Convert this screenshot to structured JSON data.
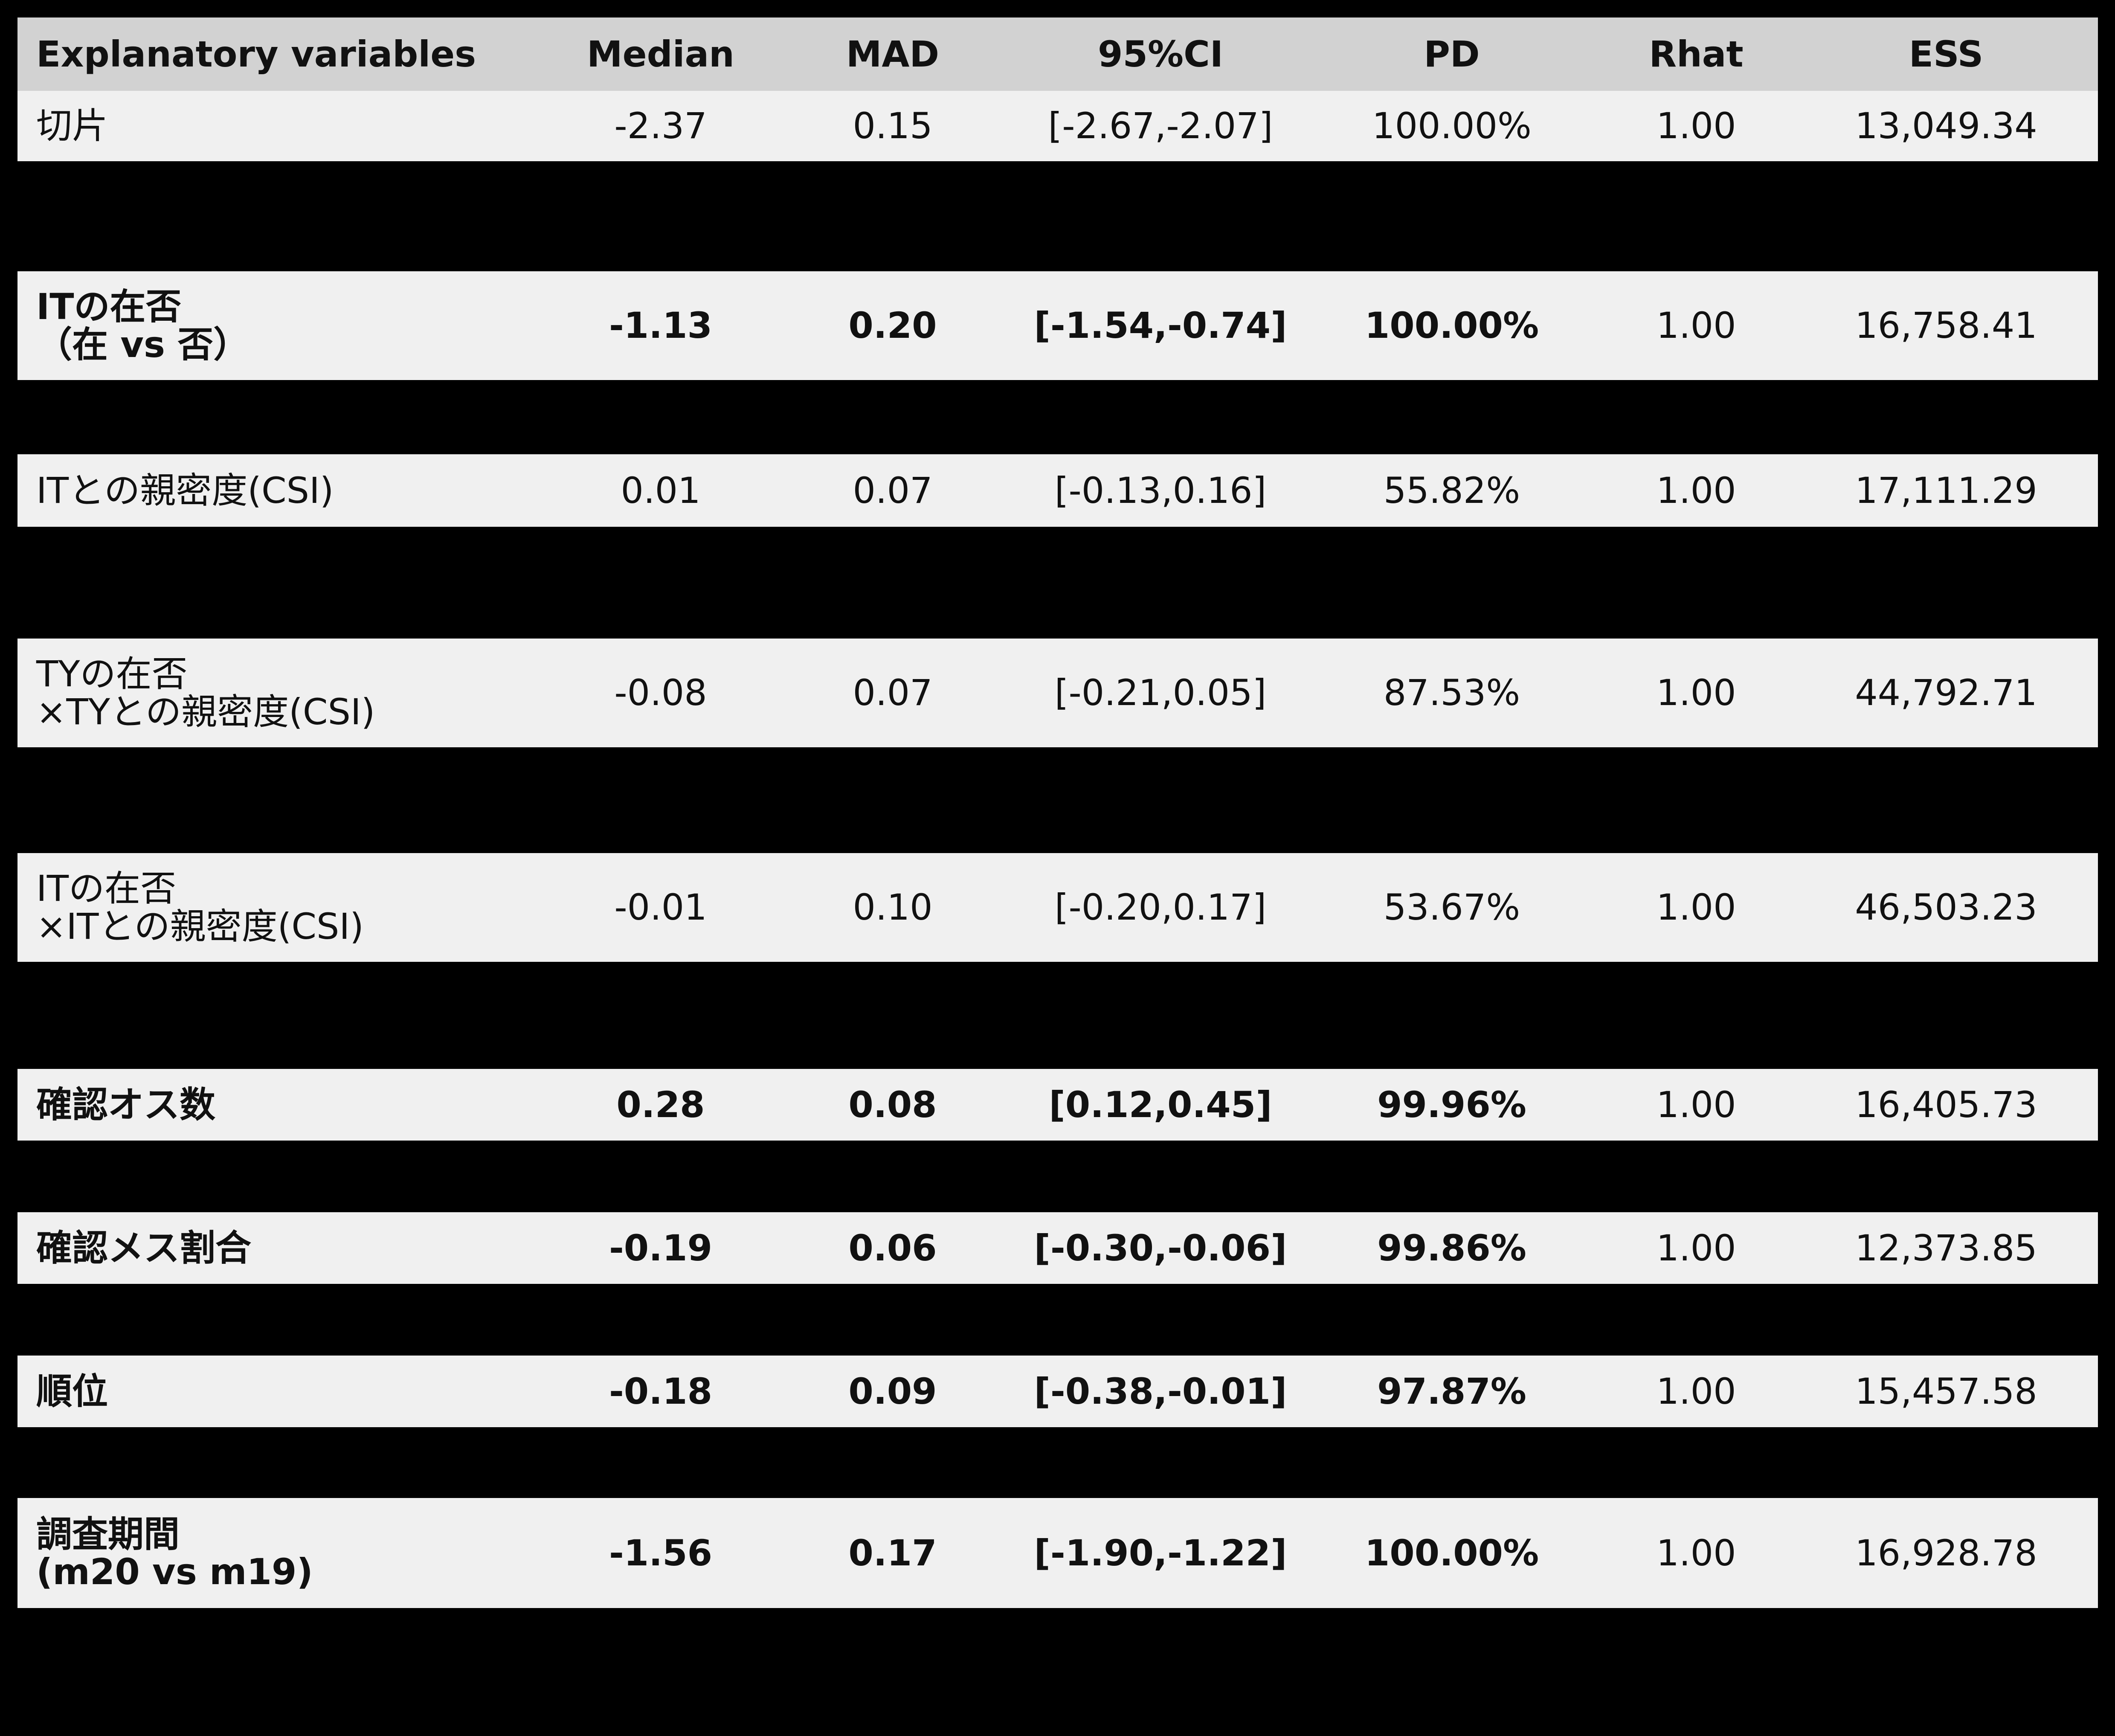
{
  "header": {
    "variable": "Explanatory variables",
    "median": "Median",
    "mad": "MAD",
    "ci": "95%CI",
    "pd": "PD",
    "rhat": "Rhat",
    "ess": "ESS"
  },
  "rows": [
    {
      "variable": "切片",
      "median": "-2.37",
      "mad": "0.15",
      "ci": "[-2.67,-2.07]",
      "pd": "100.00%",
      "rhat": "1.00",
      "ess": "13,049.34",
      "bold": false
    },
    {
      "variable": "ITの在否\n（在 vs 否）",
      "median": "-1.13",
      "mad": "0.20",
      "ci": "[-1.54,-0.74]",
      "pd": "100.00%",
      "rhat": "1.00",
      "ess": "16,758.41",
      "bold": true
    },
    {
      "variable": "ITとの親密度(CSI)",
      "median": "0.01",
      "mad": "0.07",
      "ci": "[-0.13,0.16]",
      "pd": "55.82%",
      "rhat": "1.00",
      "ess": "17,111.29",
      "bold": false
    },
    {
      "variable": "TYの在否\n ×TYとの親密度(CSI)",
      "median": "-0.08",
      "mad": "0.07",
      "ci": "[-0.21,0.05]",
      "pd": "87.53%",
      "rhat": "1.00",
      "ess": "44,792.71",
      "bold": false
    },
    {
      "variable": "ITの在否\n ×ITとの親密度(CSI)",
      "median": "-0.01",
      "mad": "0.10",
      "ci": "[-0.20,0.17]",
      "pd": "53.67%",
      "rhat": "1.00",
      "ess": "46,503.23",
      "bold": false
    },
    {
      "variable": "確認オス数",
      "median": "0.28",
      "mad": "0.08",
      "ci": "[0.12,0.45]",
      "pd": "99.96%",
      "rhat": "1.00",
      "ess": "16,405.73",
      "bold": true
    },
    {
      "variable": "確認メス割合",
      "median": "-0.19",
      "mad": "0.06",
      "ci": "[-0.30,-0.06]",
      "pd": "99.86%",
      "rhat": "1.00",
      "ess": "12,373.85",
      "bold": true
    },
    {
      "variable": "順位",
      "median": "-0.18",
      "mad": "0.09",
      "ci": "[-0.38,-0.01]",
      "pd": "97.87%",
      "rhat": "1.00",
      "ess": "15,457.58",
      "bold": true
    },
    {
      "variable": "調査期間\n(m20 vs m19)",
      "median": "-1.56",
      "mad": "0.17",
      "ci": "[-1.90,-1.22]",
      "pd": "100.00%",
      "rhat": "1.00",
      "ess": "16,928.78",
      "bold": true
    }
  ]
}
